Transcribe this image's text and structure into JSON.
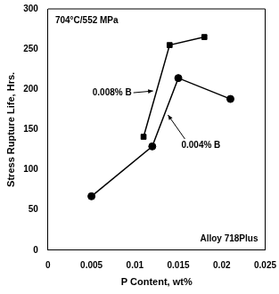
{
  "chart_data": {
    "type": "line",
    "x_label": "P Content, wt%",
    "y_label": "Stress Rupture Life, Hrs.",
    "annotations": [
      "704°C/552 MPa",
      "Alloy 718Plus"
    ],
    "series": [
      {
        "name": "0.008% B",
        "color": "#000000",
        "marker": "square",
        "x": [
          0.011,
          0.014,
          0.018
        ],
        "values": [
          141,
          255,
          265
        ]
      },
      {
        "name": "0.004% B",
        "color": "#000000",
        "marker": "circle",
        "x": [
          0.005,
          0.012,
          0.015,
          0.021
        ],
        "values": [
          67,
          129,
          214,
          188
        ]
      }
    ],
    "xlim": [
      0,
      0.025
    ],
    "xticks": [
      0,
      0.005,
      0.01,
      0.015,
      0.02,
      0.025
    ],
    "ylim": [
      0,
      300
    ],
    "yticks": [
      0,
      50,
      100,
      150,
      200,
      250,
      300
    ],
    "grid": false
  }
}
